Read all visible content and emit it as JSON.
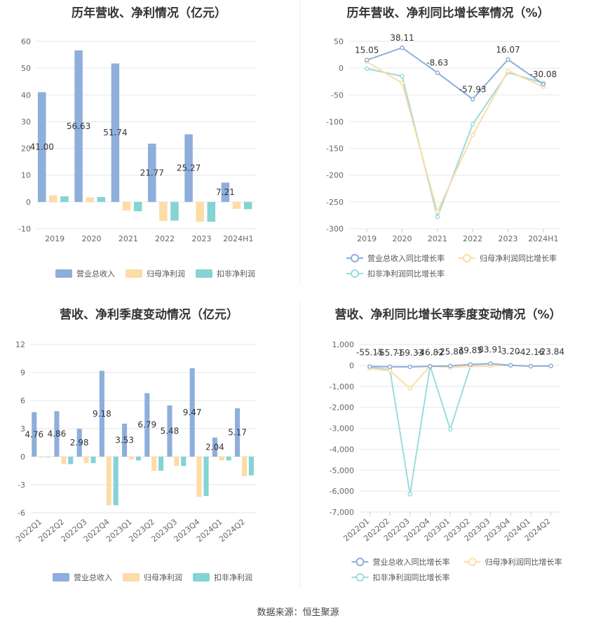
{
  "source_label": "数据来源：恒生聚源",
  "colors": {
    "revenue": "#8eaedb",
    "net_profit": "#fddca6",
    "deducted_profit": "#84d3d5",
    "revenue_line": "#8eaedb",
    "net_profit_line": "#fddca6",
    "deducted_profit_line": "#9bdcdc"
  },
  "chart_data": [
    {
      "type": "bar",
      "title": "历年营收、净利情况（亿元）",
      "categories": [
        "2019",
        "2020",
        "2021",
        "2022",
        "2023",
        "2024H1"
      ],
      "ylim": [
        -10,
        60
      ],
      "yticks": [
        -10,
        0,
        10,
        20,
        30,
        40,
        50,
        60
      ],
      "series": [
        {
          "name": "营业总收入",
          "values": [
            41.0,
            56.63,
            51.74,
            21.77,
            25.27,
            7.21
          ],
          "labels": [
            "41.00",
            "56.63",
            "51.74",
            "21.77",
            "25.27",
            "7.21"
          ]
        },
        {
          "name": "归母净利润",
          "values": [
            2.5,
            1.7,
            -3.2,
            -7.1,
            -7.4,
            -2.6
          ]
        },
        {
          "name": "扣非净利润",
          "values": [
            2.1,
            1.8,
            -3.5,
            -7.0,
            -7.4,
            -2.7
          ]
        }
      ],
      "grid": true,
      "legend": "bottom"
    },
    {
      "type": "line",
      "title": "历年营收、净利同比增长率情况（%）",
      "categories": [
        "2019",
        "2020",
        "2021",
        "2022",
        "2023",
        "2024H1"
      ],
      "ylim": [
        -300,
        50
      ],
      "yticks": [
        -300,
        -250,
        -200,
        -150,
        -100,
        -50,
        0,
        50
      ],
      "series": [
        {
          "name": "营业总收入同比增长率",
          "values": [
            15.05,
            38.11,
            -8.63,
            -57.93,
            16.07,
            -30.08
          ],
          "labels": [
            "15.05",
            "38.11",
            "-8.63",
            "-57.93",
            "16.07",
            "-30.08"
          ]
        },
        {
          "name": "归母净利润同比增长率",
          "values": [
            12,
            -28,
            -268,
            -125,
            -5,
            -35
          ]
        },
        {
          "name": "扣非净利润同比增长率",
          "values": [
            -1,
            -15,
            -278,
            -105,
            -8,
            -28
          ]
        }
      ],
      "grid": true,
      "legend": "bottom"
    },
    {
      "type": "bar",
      "title": "营收、净利季度变动情况（亿元）",
      "categories": [
        "2022Q1",
        "2022Q2",
        "2022Q3",
        "2022Q4",
        "2023Q1",
        "2023Q2",
        "2023Q3",
        "2023Q4",
        "2024Q1",
        "2024Q2"
      ],
      "ylim": [
        -6,
        12
      ],
      "yticks": [
        -6,
        -3,
        0,
        3,
        6,
        9,
        12
      ],
      "series": [
        {
          "name": "营业总收入",
          "values": [
            4.76,
            4.86,
            2.98,
            9.18,
            3.53,
            6.79,
            5.48,
            9.47,
            2.04,
            5.17
          ],
          "labels": [
            "4.76",
            "4.86",
            "2.98",
            "9.18",
            "3.53",
            "6.79",
            "5.48",
            "9.47",
            "2.04",
            "5.17"
          ]
        },
        {
          "name": "归母净利润",
          "values": [
            -0.1,
            -0.8,
            -0.7,
            -5.2,
            -0.3,
            -1.5,
            -1.0,
            -4.3,
            -0.4,
            -2.1
          ]
        },
        {
          "name": "扣非净利润",
          "values": [
            -0.05,
            -0.8,
            -0.7,
            -5.2,
            -0.4,
            -1.5,
            -1.0,
            -4.2,
            -0.4,
            -2.0
          ]
        }
      ],
      "grid": true,
      "legend": "bottom"
    },
    {
      "type": "line",
      "title": "营收、净利同比增长率季度变动情况（%）",
      "categories": [
        "2022Q1",
        "2022Q2",
        "2022Q3",
        "2022Q4",
        "2023Q1",
        "2023Q2",
        "2023Q3",
        "2023Q4",
        "2024Q1",
        "2024Q2"
      ],
      "ylim": [
        -7000,
        1000
      ],
      "yticks": [
        -7000,
        -6000,
        -5000,
        -4000,
        -3000,
        -2000,
        -1000,
        0,
        1000
      ],
      "ytick_labels": [
        "-7,000",
        "-6,000",
        "-5,000",
        "-4,000",
        "-3,000",
        "-2,000",
        "-1,000",
        "0",
        "1,000"
      ],
      "series": [
        {
          "name": "营业总收入同比增长率",
          "values": [
            -55.15,
            -65.71,
            -69.33,
            -46.82,
            -25.86,
            39.85,
            83.91,
            3.2,
            -42.16,
            -23.84
          ],
          "labels": [
            "-55.15",
            "-65.71",
            "-69.33",
            "-46.82",
            "-25.86",
            "39.85",
            "83.91",
            "3.20",
            "-42.16",
            "-23.84"
          ]
        },
        {
          "name": "归母净利润同比增长率",
          "values": [
            -150,
            -250,
            -1100,
            -30,
            -100,
            -50,
            -30,
            10,
            -30,
            -30
          ]
        },
        {
          "name": "扣非净利润同比增长率",
          "values": [
            -100,
            -200,
            -6150,
            -30,
            -3050,
            -50,
            -30,
            10,
            -30,
            -30
          ]
        }
      ],
      "grid": true,
      "legend": "bottom"
    }
  ]
}
